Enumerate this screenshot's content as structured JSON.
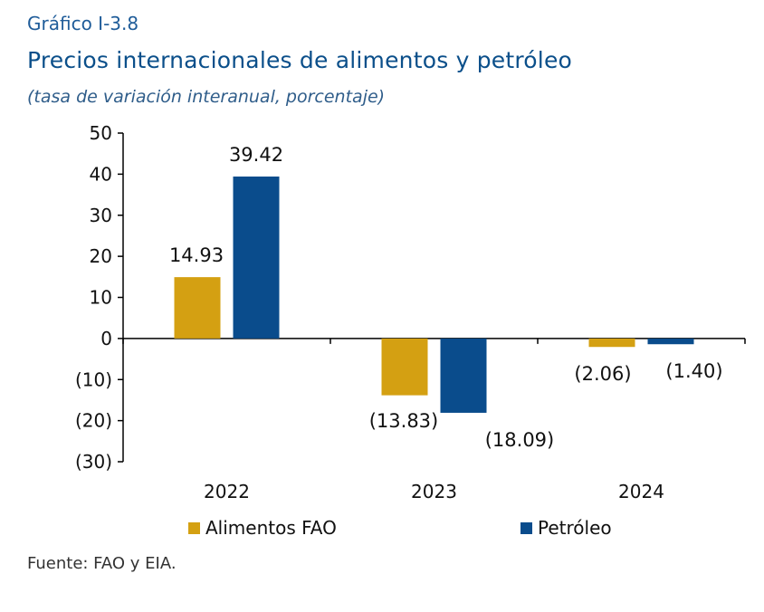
{
  "figure": {
    "number": "Gráfico I-3.8",
    "title": "Precios internacionales de alimentos y petróleo",
    "subtitle": "(tasa de variación interanual, porcentaje)",
    "source": "Fuente: FAO y EIA."
  },
  "chart_data": {
    "type": "bar",
    "categories": [
      "2022",
      "2023",
      "2024"
    ],
    "series": [
      {
        "name": "Alimentos FAO",
        "values": [
          14.93,
          -13.83,
          -2.06
        ],
        "labels": [
          "14.93",
          "(13.83)",
          "(2.06)"
        ],
        "color": "#d4a012"
      },
      {
        "name": "Petróleo",
        "values": [
          39.42,
          -18.09,
          -1.4
        ],
        "labels": [
          "39.42",
          "(18.09)",
          "(1.40)"
        ],
        "color": "#0a4c8c"
      }
    ],
    "ylim": [
      -30,
      50
    ],
    "yticks": [
      50,
      40,
      30,
      20,
      10,
      0,
      -10,
      -20,
      -30
    ],
    "ytick_labels": [
      "50",
      "40",
      "30",
      "20",
      "10",
      "0",
      "(10)",
      "(20)",
      "(30)"
    ],
    "grid": false,
    "legend_position": "bottom"
  }
}
